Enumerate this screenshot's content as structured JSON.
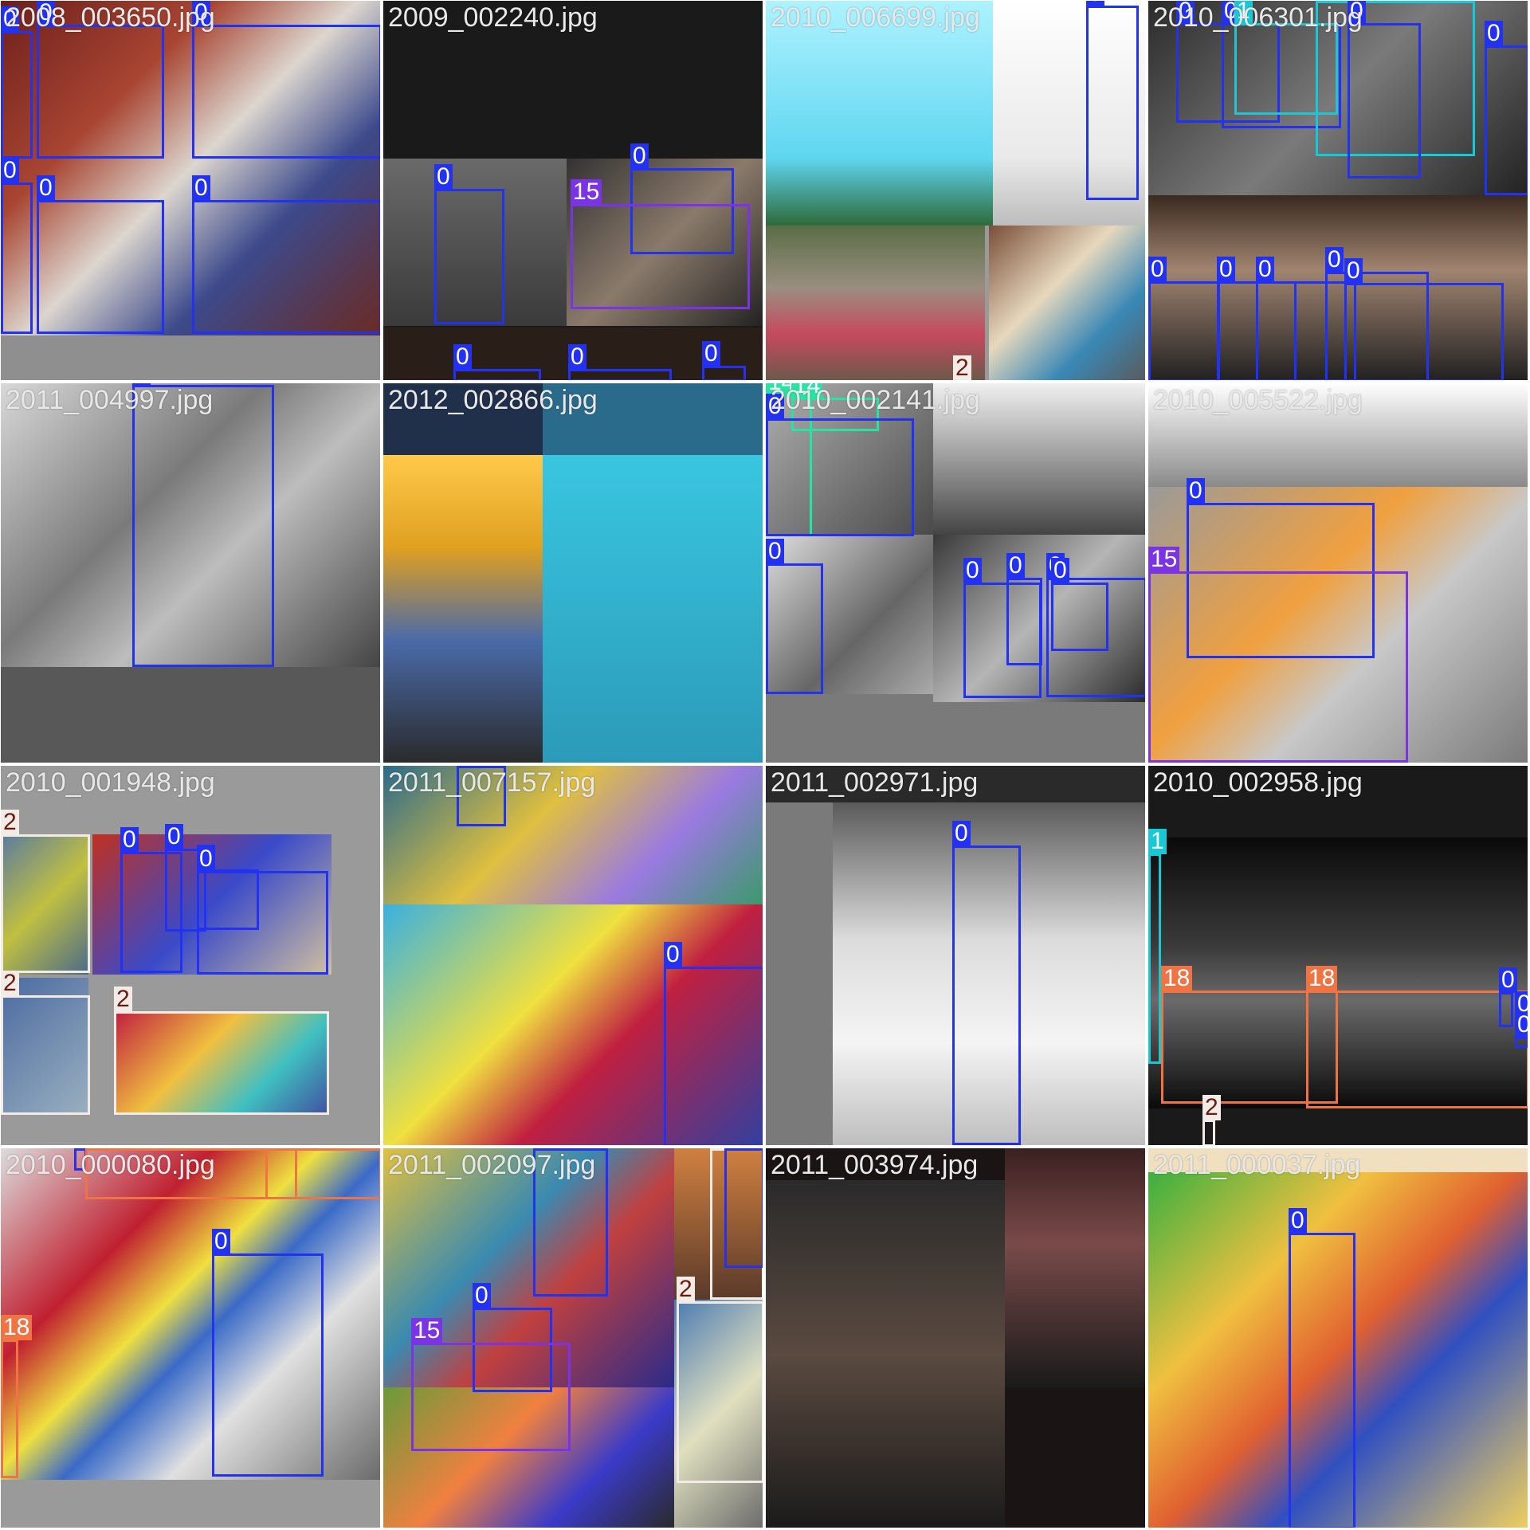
{
  "mosaic": {
    "tiles": [
      {
        "filename": "2008_003650.jpg"
      },
      {
        "filename": "2009_002240.jpg"
      },
      {
        "filename": "2010_006699.jpg"
      },
      {
        "filename": "2010_006301.jpg"
      },
      {
        "filename": "2011_004997.jpg"
      },
      {
        "filename": "2012_002866.jpg"
      },
      {
        "filename": "2010_002141.jpg"
      },
      {
        "filename": "2010_005522.jpg"
      },
      {
        "filename": "2010_001948.jpg"
      },
      {
        "filename": "2011_007157.jpg"
      },
      {
        "filename": "2011_002971.jpg"
      },
      {
        "filename": "2010_002958.jpg"
      },
      {
        "filename": "2010_000080.jpg"
      },
      {
        "filename": "2011_002097.jpg"
      },
      {
        "filename": "2011_003974.jpg"
      },
      {
        "filename": "2011_000037.jpg"
      }
    ],
    "class_colors": {
      "0": "#2231f2",
      "1": "#17c8d7",
      "2": "#f3ece6",
      "14": "#29e3a2",
      "15": "#7a34e6",
      "18": "#f07343"
    }
  }
}
